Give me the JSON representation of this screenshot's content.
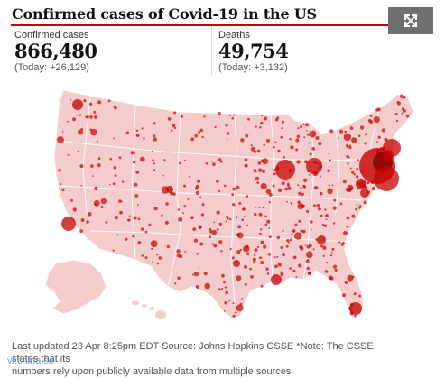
{
  "header": {
    "title": "Confirmed cases of Covid-19 in the US",
    "expand_icon": "expand-arrows-icon"
  },
  "stats": {
    "cases": {
      "label": "Confirmed cases",
      "value": "866,480",
      "change": "(Today: +26,129)"
    },
    "deaths": {
      "label": "Deaths",
      "value": "49,754",
      "change": "(Today: +3,132)"
    }
  },
  "map": {
    "kind": "proportional-symbol map of US counties",
    "land_color": "#f4cccc",
    "state_border_color": "#ffffff",
    "bubble_color": "#c70000",
    "hotspots": [
      "New York",
      "New Jersey",
      "Massachusetts",
      "Michigan",
      "Illinois",
      "Louisiana",
      "Pennsylvania",
      "California",
      "Florida",
      "Washington"
    ]
  },
  "footer": {
    "note_line1": "Last updated 23 Apr 8:25pm EDT Source: Johns Hopkins CSSE *Note: The CSSE states that its",
    "note_line2": "numbers rely upon publicly available data from multiple sources.",
    "watermark": "vi.china.se"
  }
}
